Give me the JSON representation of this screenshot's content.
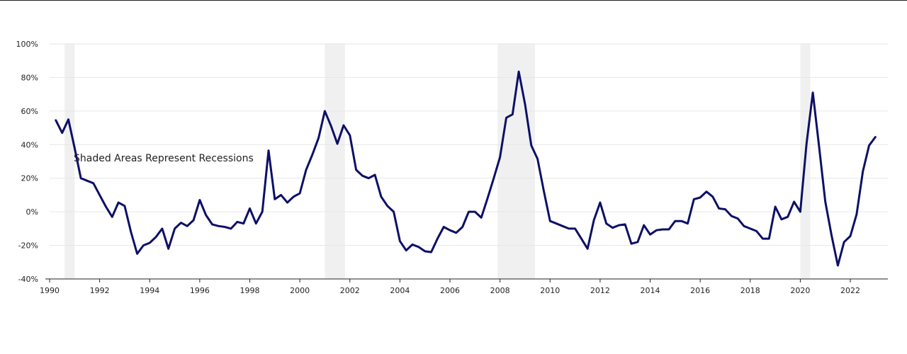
{
  "chart_data": {
    "type": "line",
    "title": "",
    "xlabel": "",
    "ylabel": "",
    "annotation": "Shaded Areas Represent Recessions",
    "xlim": [
      1990,
      2023.5
    ],
    "ylim": [
      -40,
      100
    ],
    "y_unit": "%",
    "grid": true,
    "x_ticks": [
      "1990",
      "1992",
      "1994",
      "1996",
      "1998",
      "2000",
      "2002",
      "2004",
      "2006",
      "2008",
      "2010",
      "2012",
      "2014",
      "2016",
      "2018",
      "2020",
      "2022"
    ],
    "y_ticks": [
      "100%",
      "80%",
      "60%",
      "40%",
      "20%",
      "0%",
      "-20%",
      "-40%"
    ],
    "recessions": [
      [
        1990.6,
        1991.0
      ],
      [
        2001.0,
        2001.8
      ],
      [
        2007.9,
        2009.4
      ],
      [
        2020.0,
        2020.4
      ]
    ],
    "colors": {
      "line": "#0d1066",
      "recession": "#f0f0f0",
      "grid": "#e6e6e6",
      "axis": "#222222"
    },
    "series": [
      {
        "x": [
          1990.25,
          1990.5,
          1990.75,
          1991.0,
          1991.25,
          1991.5,
          1991.75,
          1992.0,
          1992.25,
          1992.5,
          1992.75,
          1993.0,
          1993.25,
          1993.5,
          1993.75,
          1994.0,
          1994.25,
          1994.5,
          1994.75,
          1995.0,
          1995.25,
          1995.5,
          1995.75,
          1996.0,
          1996.25,
          1996.5,
          1996.75,
          1997.0,
          1997.25,
          1997.5,
          1997.75,
          1998.0,
          1998.25,
          1998.5,
          1998.75,
          1999.0,
          1999.25,
          1999.5,
          1999.75,
          2000.0,
          2000.25,
          2000.5,
          2000.75,
          2001.0,
          2001.25,
          2001.5,
          2001.75,
          2002.0,
          2002.25,
          2002.5,
          2002.75,
          2003.0,
          2003.25,
          2003.5,
          2003.75,
          2004.0,
          2004.25,
          2004.5,
          2004.75,
          2005.0,
          2005.25,
          2005.5,
          2005.75,
          2006.0,
          2006.25,
          2006.5,
          2006.75,
          2007.0,
          2007.25,
          2007.5,
          2007.75,
          2008.0,
          2008.25,
          2008.5,
          2008.75,
          2009.0,
          2009.25,
          2009.5,
          2009.75,
          2010.0,
          2010.25,
          2010.5,
          2010.75,
          2011.0,
          2011.25,
          2011.5,
          2011.75,
          2012.0,
          2012.25,
          2012.5,
          2012.75,
          2013.0,
          2013.25,
          2013.5,
          2013.75,
          2014.0,
          2014.25,
          2014.5,
          2014.75,
          2015.0,
          2015.25,
          2015.5,
          2015.75,
          2016.0,
          2016.25,
          2016.5,
          2016.75,
          2017.0,
          2017.25,
          2017.5,
          2017.75,
          2018.0,
          2018.25,
          2018.5,
          2018.75,
          2019.0,
          2019.25,
          2019.5,
          2019.75,
          2020.0,
          2020.25,
          2020.5,
          2020.75,
          2021.0,
          2021.25,
          2021.5,
          2021.75,
          2022.0,
          2022.25,
          2022.5,
          2022.75,
          2023.0
        ],
        "values": [
          54.5,
          47,
          55,
          38,
          20,
          18.5,
          17,
          10,
          3,
          -3,
          5.5,
          3.5,
          -12,
          -25,
          -20,
          -18.5,
          -15,
          -10,
          -22,
          -10,
          -6.5,
          -8.5,
          -5,
          7,
          -2,
          -7.5,
          -8.5,
          -9,
          -10,
          -6,
          -7,
          2,
          -7,
          0,
          36.5,
          7.5,
          10,
          5.5,
          9,
          11,
          25,
          34,
          44,
          60,
          51,
          40.5,
          51.5,
          45.5,
          25,
          21.5,
          20,
          22,
          9,
          3.5,
          0,
          -17.5,
          -23,
          -19.5,
          -21,
          -23.5,
          -24,
          -16,
          -9,
          -11,
          -12.5,
          -9,
          0,
          0,
          -3.5,
          8,
          20,
          32.5,
          56,
          58,
          83.5,
          64,
          39.5,
          31.5,
          12.5,
          -5.5,
          -7,
          -8.5,
          -10,
          -10,
          -16,
          -22,
          -5,
          5.5,
          -7,
          -9.5,
          -8,
          -7.5,
          -19,
          -18,
          -8,
          -13.5,
          -11,
          -10.5,
          -10.5,
          -5.5,
          -5.5,
          -7,
          7.5,
          8.5,
          12,
          9,
          2,
          1.5,
          -2.5,
          -4,
          -8.5,
          -10,
          -11.5,
          -16,
          -16,
          3,
          -4.5,
          -3,
          6,
          0,
          40.5,
          71,
          39,
          6,
          -14,
          -32,
          -18,
          -14.5,
          -1.5,
          24,
          39.5,
          44.5
        ]
      }
    ]
  }
}
